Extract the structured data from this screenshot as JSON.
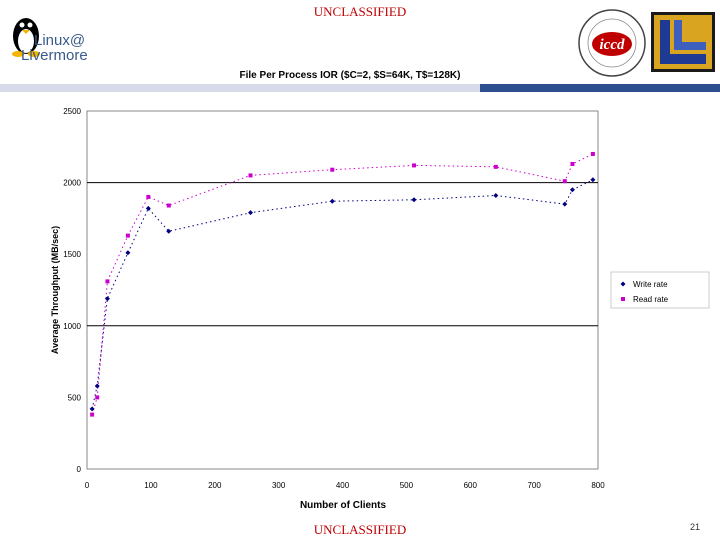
{
  "header": {
    "classification": "UNCLASSIFIED",
    "logo_line1": "Linux@",
    "logo_line2": "Livermore",
    "iccd_label": "iccd"
  },
  "footer": {
    "classification": "UNCLASSIFIED",
    "page_number": "21"
  },
  "colors": {
    "write": "#000080",
    "read": "#cc00cc",
    "classification": "#c00000"
  },
  "chart_data": {
    "type": "scatter",
    "title": "File Per Process IOR ($C=2, $S=64K, T$=128K)",
    "xlabel": "Number of Clients",
    "ylabel": "Average Throughput (MB/sec)",
    "xlim": [
      0,
      800
    ],
    "ylim": [
      0,
      2500
    ],
    "xticks": [
      0,
      100,
      200,
      300,
      400,
      500,
      600,
      700,
      800
    ],
    "yticks": [
      0,
      500,
      1000,
      1500,
      2000,
      2500
    ],
    "xtick_labels": [
      "0",
      "100",
      "200",
      "300",
      "400",
      "500",
      "600",
      "700",
      "800"
    ],
    "ytick_labels": [
      "0",
      "500",
      "1000",
      "1500",
      "2000",
      "2500"
    ],
    "grid": "horizontal at 1000 and 2000",
    "legend_position": "right",
    "series": [
      {
        "name": "Write rate",
        "color": "#000080",
        "marker": "diamond",
        "x": [
          8,
          16,
          32,
          64,
          96,
          128,
          256,
          384,
          512,
          640,
          748,
          760,
          792
        ],
        "y": [
          420,
          580,
          1190,
          1510,
          1820,
          1660,
          1790,
          1870,
          1880,
          1910,
          1850,
          1950,
          2020
        ]
      },
      {
        "name": "Read rate",
        "color": "#cc00cc",
        "marker": "square",
        "x": [
          8,
          16,
          32,
          64,
          96,
          128,
          256,
          384,
          512,
          640,
          748,
          760,
          792
        ],
        "y": [
          380,
          500,
          1310,
          1630,
          1900,
          1840,
          2050,
          2090,
          2120,
          2110,
          2010,
          2130,
          2200
        ]
      }
    ]
  }
}
